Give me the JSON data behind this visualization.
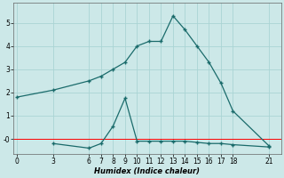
{
  "xlabel": "Humidex (Indice chaleur)",
  "background_color": "#cce8e8",
  "grid_color": "#aad4d4",
  "line_color": "#1a6b6b",
  "series1_x": [
    0,
    3,
    6,
    7,
    8,
    9,
    10,
    11,
    12,
    13,
    14,
    15,
    16,
    17,
    18,
    21
  ],
  "series1_y": [
    1.8,
    2.1,
    2.5,
    2.7,
    3.0,
    3.3,
    4.0,
    4.2,
    4.2,
    5.3,
    4.7,
    4.0,
    3.3,
    2.4,
    1.2,
    -0.3
  ],
  "series2_x": [
    3,
    6,
    7,
    8,
    9,
    10,
    11,
    12,
    13,
    14,
    15,
    16,
    17,
    18,
    21
  ],
  "series2_y": [
    -0.2,
    -0.4,
    -0.2,
    0.55,
    1.75,
    -0.1,
    -0.1,
    -0.1,
    -0.1,
    -0.1,
    -0.15,
    -0.2,
    -0.2,
    -0.25,
    -0.35
  ],
  "xticks": [
    0,
    3,
    6,
    7,
    8,
    9,
    10,
    11,
    12,
    13,
    14,
    15,
    16,
    17,
    18,
    21
  ],
  "yticks": [
    0,
    1,
    2,
    3,
    4,
    5
  ],
  "ytick_labels": [
    "-0",
    "1",
    "2",
    "3",
    "4",
    "5"
  ],
  "xlim": [
    -0.3,
    22
  ],
  "ylim": [
    -0.65,
    5.85
  ],
  "red_line_y": 0.0
}
